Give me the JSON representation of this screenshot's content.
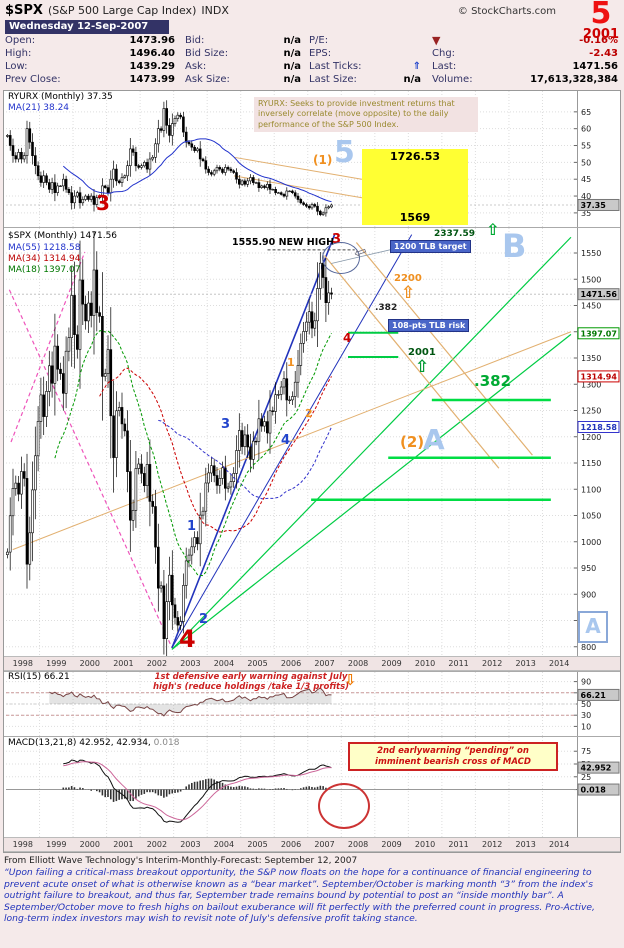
{
  "colors": {
    "background": "#F5EAEA",
    "navy": "#333366",
    "red_accent": "#CC0000",
    "light_blue_wave": "#A9C7EE",
    "orange_wave": "#F09020",
    "bright_green": "#00CC44",
    "yellow_target_box": "#FFFF33",
    "blue_trendline": "#2233BB",
    "magenta_dashed": "#EE55BB"
  },
  "header": {
    "symbol": "$SPX",
    "name": "(S&P 500 Large Cap Index)",
    "exchange": "INDX",
    "credit": "© StockCharts.com",
    "wave_number": "5",
    "wave_year": "2001"
  },
  "quote": {
    "date": "Wednesday 12-Sep-2007",
    "open_label": "Open:",
    "open": "1473.96",
    "high_label": "High:",
    "high": "1496.40",
    "low_label": "Low:",
    "low": "1439.29",
    "prev_label": "Prev Close:",
    "prev": "1473.99",
    "bid_label": "Bid:",
    "bid": "n/a",
    "bid_size_label": "Bid Size:",
    "bid_size": "n/a",
    "ask_label": "Ask:",
    "ask": "n/a",
    "ask_size_label": "Ask Size:",
    "ask_size": "n/a",
    "pe_label": "P/E:",
    "pe": "",
    "eps_label": "EPS:",
    "eps": "",
    "ticks_label": "Last Ticks:",
    "ticks_icon": "⇑",
    "size_label": "Last Size:",
    "size": "n/a",
    "direction_icon": "▼",
    "pct": "-0.16%",
    "chg_label": "Chg:",
    "chg": "-2.43",
    "last_label": "Last:",
    "last": "1471.56",
    "vol_label": "Volume:",
    "vol": "17,613,328,384"
  },
  "panels": {
    "ryurx": {
      "legend_icon": "↕",
      "legend_symbol": "RYURX (Monthly) 37.35",
      "legend_ma": "MA(21) 38.24",
      "note": "RYURX: Seeks to provide investment returns that inversely correlate (move opposite) to the daily performance of the S&P 500 Index.",
      "wave_3": "3",
      "wave_sub1": "(1)",
      "wave_5": "5",
      "box_high": "1726.53",
      "box_low": "1569"
    },
    "main": {
      "legend_icon": "↕",
      "legend_symbol": "$SPX (Monthly) 1471.56",
      "legend_ma55": "MA(55) 1218.58",
      "legend_ma34": "MA(34) 1314.94",
      "legend_ma18": "MA(18) 1397.07",
      "ann": {
        "new_high": "1555.90 NEW HIGH",
        "red3": "3",
        "tlb_arrow_icon": "⇦",
        "tlb_target": "1200 TLB target",
        "target2337": "2337.59",
        "arrow2337_icon": "⇧",
        "waveB": "B",
        "o2200": "2200",
        "arrow2200_icon": "⇧",
        "fib382_small": ".382",
        "tlb_risk": "108-pts TLB risk",
        "red4_small": "4",
        "y2001": "2001",
        "arrow2001_icon": "⇧",
        "fib382_big": ".382",
        "wave2sub": "(2)",
        "waveA": "A",
        "blue1": "1",
        "blue2": "2",
        "blue3": "3",
        "blue4": "4",
        "orange1": "1",
        "orange2": "2",
        "big_red4": "4",
        "corner_A": "A"
      }
    },
    "rsi": {
      "legend": "RSI(15) 66.21",
      "warning": "1st defensive early warning against July high's (reduce holdings /take 1/3 profits)",
      "arrow_icon": "⇩"
    },
    "macd": {
      "legend": "MACD(13,21,8) 42.952, 42.934,",
      "legend_hist": "0.018",
      "warning": "2nd earlywarning “pending” on imminent bearish cross of MACD"
    }
  },
  "x_axis": {
    "years": [
      "1998",
      "1999",
      "2000",
      "2001",
      "2002",
      "2003",
      "2004",
      "2005",
      "2006",
      "2007",
      "2008",
      "2009",
      "2010",
      "2011",
      "2012",
      "2013",
      "2014"
    ]
  },
  "footer": {
    "source_line": "From Elliott Wave Technology's Interim-Monthly-Forecast:  September 12, 2007",
    "paragraph": "“Upon failing a critical-mass breakout opportunity, the S&P now floats on the hope for a continuance of financial engineering to prevent acute onset of what is otherwise known as a “bear market”.  September/October is marking month “3” from the index's outright failure to breakout, and thus far, September trade remains bound by potential to post an “inside monthly bar”.  A September/October move to fresh highs on bailout exuberance will fit perfectly with the preferred count in progress.  Pro-Active, long-term index investors may wish to revisit note of July's defensive profit taking stance."
  },
  "chart_data": [
    {
      "type": "candlestick",
      "title": "RYURX (Monthly)",
      "freq": "monthly",
      "x_start": "1998-01",
      "x_end": "2007-09",
      "x_axis_visible_range": [
        "1998",
        "2014"
      ],
      "last": 37.35,
      "last_label": "37.35",
      "ylim": [
        32,
        70
      ],
      "yticks": [
        65,
        60,
        55,
        50,
        45,
        40,
        35
      ],
      "ma": [
        {
          "name": "MA(21)",
          "period": 21,
          "last": 38.24
        }
      ],
      "closes": [
        58,
        55,
        52,
        51,
        53,
        51,
        52,
        60,
        56,
        52,
        49,
        46,
        44,
        46,
        44,
        42,
        44,
        41,
        43,
        43,
        45,
        42,
        41,
        38,
        40,
        41,
        38,
        39,
        40,
        39,
        40,
        37.5,
        39.5,
        40,
        43,
        42.5,
        41,
        45,
        48,
        44.5,
        44,
        45.5,
        46,
        49,
        54,
        53,
        49,
        48.5,
        49,
        50,
        48,
        51,
        51.5,
        55.5,
        60,
        59.5,
        66,
        61,
        58,
        61.5,
        63,
        64,
        63.5,
        59,
        56,
        55.5,
        54.5,
        53.5,
        54,
        51,
        50.5,
        48,
        47,
        46.5,
        47.5,
        48.5,
        48,
        47,
        48.5,
        48,
        47.5,
        47,
        45,
        43.5,
        44.5,
        43.5,
        44.5,
        45.5,
        44,
        44,
        42.5,
        43,
        42.5,
        43.5,
        42,
        42,
        41,
        41,
        40.5,
        40,
        41.5,
        41.5,
        41,
        40,
        39,
        38,
        37.5,
        37,
        36.5,
        37.5,
        37,
        35.5,
        34.5,
        35,
        36.5,
        36.8,
        37.35
      ],
      "annotation_targets": {
        "box_high": 1726.53,
        "box_low": 1569
      }
    },
    {
      "type": "candlestick",
      "title": "$SPX (Monthly)",
      "freq": "monthly",
      "x_start": "1998-01",
      "x_end": "2007-09",
      "x_axis_visible_range": [
        "1998",
        "2014"
      ],
      "last": 1471.56,
      "ylim": [
        790,
        1590
      ],
      "yticks": [
        1550,
        1500,
        1450,
        1400,
        1350,
        1300,
        1250,
        1200,
        1150,
        1100,
        1050,
        1000,
        950,
        900,
        850,
        800
      ],
      "ma": [
        {
          "name": "MA(55)",
          "period": 55,
          "last": 1218.58
        },
        {
          "name": "MA(34)",
          "period": 34,
          "last": 1314.94
        },
        {
          "name": "MA(18)",
          "period": 18,
          "last": 1397.07
        }
      ],
      "axis_boxes": [
        {
          "text": "1471.56",
          "value": 1471.56,
          "style": "last"
        },
        {
          "text": "1397.07",
          "value": 1397.07,
          "style": "ma18"
        },
        {
          "text": "1314.94",
          "value": 1314.94,
          "style": "ma34"
        },
        {
          "text": "1218.58",
          "value": 1218.58,
          "style": "ma55"
        }
      ],
      "key_levels": {
        "new_high": 1555.9,
        "tlb_target": 1200,
        "upside_target": 2337.59,
        "interim_target": 2200,
        "tlb_risk_points": 108,
        "fib_ratio": 0.382
      },
      "closes": [
        980.28,
        1049.34,
        1101.75,
        1111.75,
        1090.82,
        1133.84,
        1120.67,
        957.28,
        1017.01,
        1098.67,
        1163.63,
        1229.23,
        1279.64,
        1238.33,
        1286.37,
        1335.18,
        1301.84,
        1372.71,
        1328.72,
        1320.41,
        1282.71,
        1362.93,
        1388.91,
        1469.25,
        1394.46,
        1366.42,
        1498.58,
        1452.43,
        1420.6,
        1454.6,
        1430.83,
        1517.68,
        1436.51,
        1429.4,
        1314.95,
        1320.28,
        1366.01,
        1239.94,
        1160.33,
        1249.46,
        1255.82,
        1224.38,
        1211.23,
        1133.58,
        1040.94,
        1059.78,
        1139.45,
        1148.08,
        1130.2,
        1106.73,
        1147.39,
        1076.92,
        1067.14,
        989.82,
        911.62,
        916.07,
        815.28,
        885.76,
        936.31,
        879.82,
        855.7,
        841.15,
        848.18,
        916.92,
        963.59,
        974.5,
        990.31,
        1008.01,
        995.97,
        1050.71,
        1058.2,
        1111.92,
        1131.13,
        1144.94,
        1126.21,
        1107.3,
        1120.68,
        1140.84,
        1101.72,
        1104.24,
        1114.58,
        1130.2,
        1173.82,
        1211.92,
        1181.27,
        1203.6,
        1180.59,
        1156.85,
        1191.5,
        1191.33,
        1234.18,
        1220.33,
        1228.81,
        1207.01,
        1249.48,
        1248.29,
        1280.08,
        1280.66,
        1294.83,
        1310.61,
        1270.09,
        1270.2,
        1276.66,
        1303.82,
        1335.85,
        1377.94,
        1400.63,
        1418.3,
        1438.24,
        1406.82,
        1420.86,
        1482.37,
        1530.62,
        1503.35,
        1455.27,
        1473.99,
        1471.56
      ]
    },
    {
      "type": "line",
      "title": "RSI(15)",
      "period": 15,
      "derived_from": "SPX monthly closes",
      "last": 66.21,
      "last_label": "66.21",
      "ylim": [
        0,
        100
      ],
      "yticks": [
        90,
        70,
        50,
        30,
        10
      ],
      "reference_lines": [
        70,
        50,
        30
      ]
    },
    {
      "type": "line+histogram",
      "title": "MACD(13,21,8)",
      "params": [
        13,
        21,
        8
      ],
      "derived_from": "SPX monthly closes",
      "last_macd": 42.952,
      "last_signal": 42.934,
      "last_hist": 0.018,
      "labels": [
        "42.952",
        "0.018"
      ],
      "ylim": [
        -85,
        95
      ],
      "yticks": [
        75,
        50,
        25,
        0
      ]
    }
  ]
}
